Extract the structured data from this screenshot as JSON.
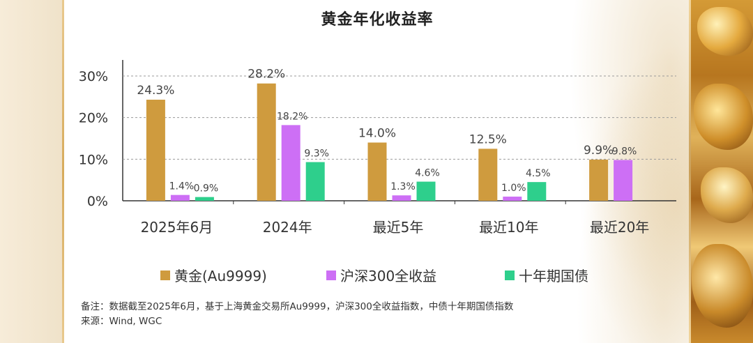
{
  "page": {
    "footnote": "备注：数据截至2025年6月，基于上海黄金交易所Au9999，沪深300全收益指数，中债十年期国债指数",
    "source": "来源：Wind, WGC"
  },
  "chart_data": {
    "type": "bar",
    "title": "黄金年化收益率",
    "categories": [
      "2025年6月",
      "2024年",
      "最近5年",
      "最近10年",
      "最近20年"
    ],
    "series": [
      {
        "name": "黄金(Au9999)",
        "color": "#cf9b3e",
        "values": [
          24.3,
          28.2,
          14.0,
          12.5,
          9.9
        ],
        "labels": [
          "24.3%",
          "28.2%",
          "14.0%",
          "12.5%",
          "9.9%"
        ]
      },
      {
        "name": "沪深300全收益",
        "color": "#cd6ff5",
        "values": [
          1.4,
          18.2,
          1.3,
          1.0,
          9.8
        ],
        "labels": [
          "1.4%",
          "18.2%",
          "1.3%",
          "1.0%",
          "9.8%"
        ]
      },
      {
        "name": "十年期国债",
        "color": "#2ecf8c",
        "values": [
          0.9,
          9.3,
          4.6,
          4.5,
          null
        ],
        "labels": [
          "0.9%",
          "9.3%",
          "4.6%",
          "4.5%",
          ""
        ]
      }
    ],
    "yticks": [
      0,
      10,
      20,
      30
    ],
    "ytick_labels": [
      "0%",
      "10%",
      "20%",
      "30%"
    ],
    "ylim": [
      0,
      33
    ],
    "xlabel": "",
    "ylabel": "",
    "grid": "dashed-horizontal",
    "legend_position": "bottom"
  }
}
